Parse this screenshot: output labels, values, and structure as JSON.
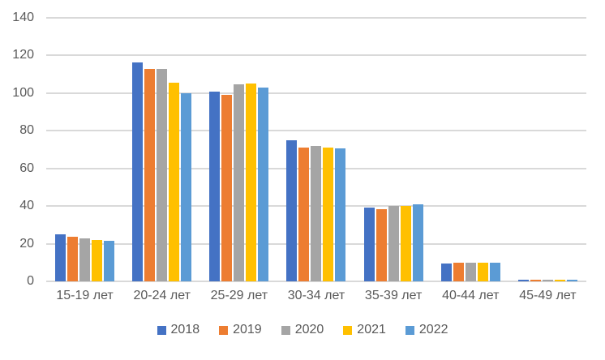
{
  "chart_data": {
    "type": "bar",
    "title": "",
    "categories": [
      "15-19 лет",
      "20-24 лет",
      "25-29 лет",
      "30-34 лет",
      "35-39 лет",
      "40-44 лет",
      "45-49 лет"
    ],
    "series": [
      {
        "name": "2018",
        "color": "#4472C4",
        "values": [
          25,
          116.5,
          101,
          75,
          39,
          9.5,
          1
        ]
      },
      {
        "name": "2019",
        "color": "#ED7D31",
        "values": [
          23.5,
          113,
          99,
          71,
          38.5,
          10,
          1
        ]
      },
      {
        "name": "2020",
        "color": "#A5A5A5",
        "values": [
          23,
          113,
          104.5,
          72,
          40,
          10,
          1
        ]
      },
      {
        "name": "2021",
        "color": "#FFC000",
        "values": [
          22,
          105.5,
          105,
          71,
          40,
          10,
          1
        ]
      },
      {
        "name": "2022",
        "color": "#5B9BD5",
        "values": [
          21.5,
          100,
          103,
          70.5,
          41,
          10,
          1
        ]
      }
    ],
    "y_ticks": [
      0,
      20,
      40,
      60,
      80,
      100,
      120,
      140
    ],
    "ylim": [
      0,
      140
    ],
    "grid": true,
    "legend_position": "bottom",
    "xlabel": "",
    "ylabel": ""
  },
  "colors": {
    "axis_text": "#595959",
    "gridline": "#D9D9D9",
    "background": "#FFFFFF"
  }
}
